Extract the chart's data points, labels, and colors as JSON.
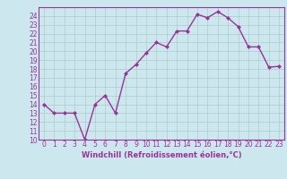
{
  "x": [
    0,
    1,
    2,
    3,
    4,
    5,
    6,
    7,
    8,
    9,
    10,
    11,
    12,
    13,
    14,
    15,
    16,
    17,
    18,
    19,
    20,
    21,
    22,
    23
  ],
  "y": [
    14,
    13,
    13,
    13,
    10,
    14,
    15,
    13,
    17.5,
    18.5,
    19.8,
    21,
    20.5,
    22.3,
    22.3,
    24.2,
    23.8,
    24.5,
    23.8,
    22.8,
    20.5,
    20.5,
    18.2,
    18.3
  ],
  "line_color": "#993399",
  "marker": "D",
  "marker_size": 2.0,
  "bg_color": "#cce8ee",
  "grid_color": "#aacccc",
  "xlabel": "Windchill (Refroidissement éolien,°C)",
  "ylim": [
    10,
    25
  ],
  "xlim": [
    -0.5,
    23.5
  ],
  "yticks": [
    10,
    11,
    12,
    13,
    14,
    15,
    16,
    17,
    18,
    19,
    20,
    21,
    22,
    23,
    24
  ],
  "xticks": [
    0,
    1,
    2,
    3,
    4,
    5,
    6,
    7,
    8,
    9,
    10,
    11,
    12,
    13,
    14,
    15,
    16,
    17,
    18,
    19,
    20,
    21,
    22,
    23
  ],
  "line_width": 1.0,
  "font_color": "#993399",
  "tick_fontsize": 5.5,
  "xlabel_fontsize": 6.0
}
